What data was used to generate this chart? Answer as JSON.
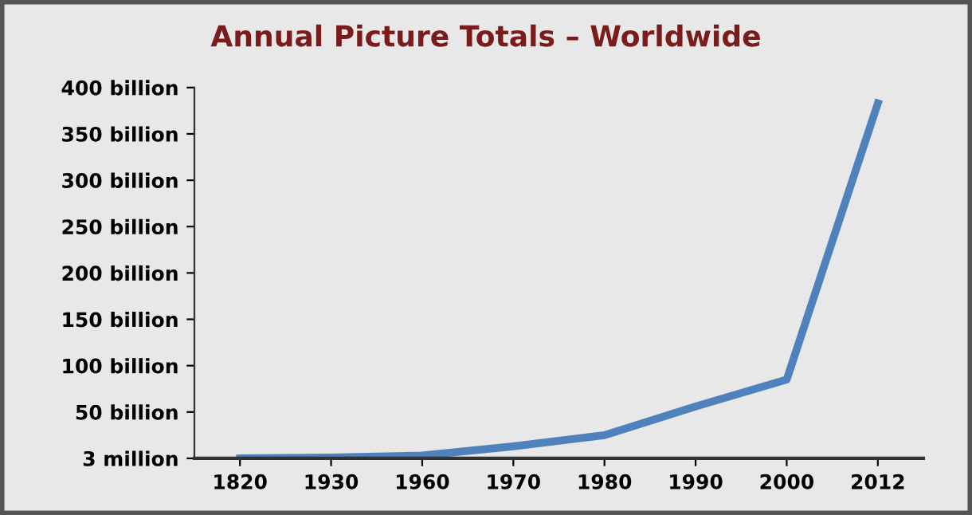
{
  "chart_data": {
    "type": "line",
    "title": "Annual Picture Totals – Worldwide",
    "categories": [
      "1820",
      "1930",
      "1960",
      "1970",
      "1980",
      "1990",
      "2000",
      "2012"
    ],
    "series": [
      {
        "color": "#4f81bd",
        "values": [
          3000000,
          1000000000,
          3000000000,
          13000000000,
          25000000000,
          56000000000,
          85000000000,
          383000000000
        ]
      }
    ],
    "ylim": [
      3000000,
      400000000000
    ],
    "yticks": [
      {
        "value": 3000000,
        "label": "3 million"
      },
      {
        "value": 50000000000,
        "label": "50 billion"
      },
      {
        "value": 100000000000,
        "label": "100 billion"
      },
      {
        "value": 150000000000,
        "label": "150 billion"
      },
      {
        "value": 200000000000,
        "label": "200 billion"
      },
      {
        "value": 250000000000,
        "label": "250 billion"
      },
      {
        "value": 300000000000,
        "label": "300 billion"
      },
      {
        "value": 350000000000,
        "label": "350 billion"
      },
      {
        "value": 400000000000,
        "label": "400 billion"
      }
    ],
    "grid": false,
    "legend": false,
    "marker": "none",
    "line_style": "solid"
  }
}
